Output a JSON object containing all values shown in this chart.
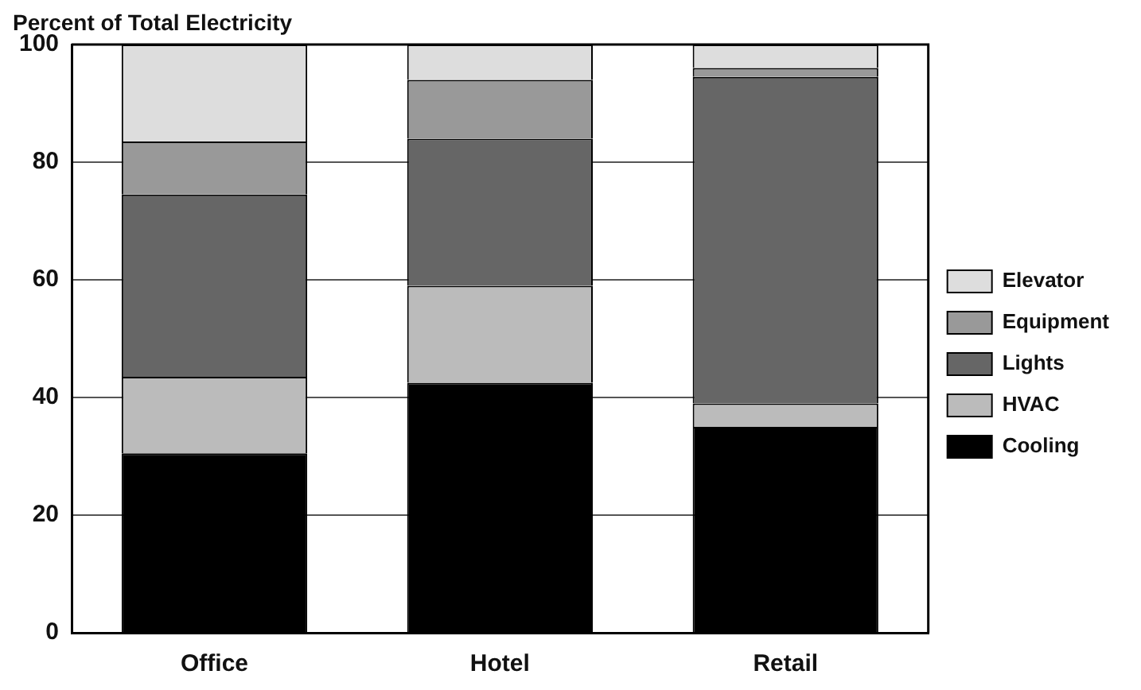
{
  "chart_data": {
    "type": "bar",
    "stacked": true,
    "ylabel": "Percent of Total Electricity",
    "categories": [
      "Office",
      "Hotel",
      "Retail"
    ],
    "series": [
      {
        "name": "Cooling",
        "color": "#000000",
        "values": [
          30.5,
          42.5,
          35
        ]
      },
      {
        "name": "HVAC",
        "color": "#bbbbbb",
        "values": [
          13,
          16.5,
          4
        ]
      },
      {
        "name": "Lights",
        "color": "#666666",
        "values": [
          31,
          25,
          55.5
        ]
      },
      {
        "name": "Equipment",
        "color": "#999999",
        "values": [
          9,
          10,
          1.5
        ]
      },
      {
        "name": "Elevator",
        "color": "#dddddd",
        "values": [
          16.5,
          6,
          4
        ]
      }
    ],
    "ylim": [
      0,
      100
    ],
    "yticks": [
      0,
      20,
      40,
      60,
      80,
      100
    ],
    "grid": "y",
    "legend": "right"
  }
}
